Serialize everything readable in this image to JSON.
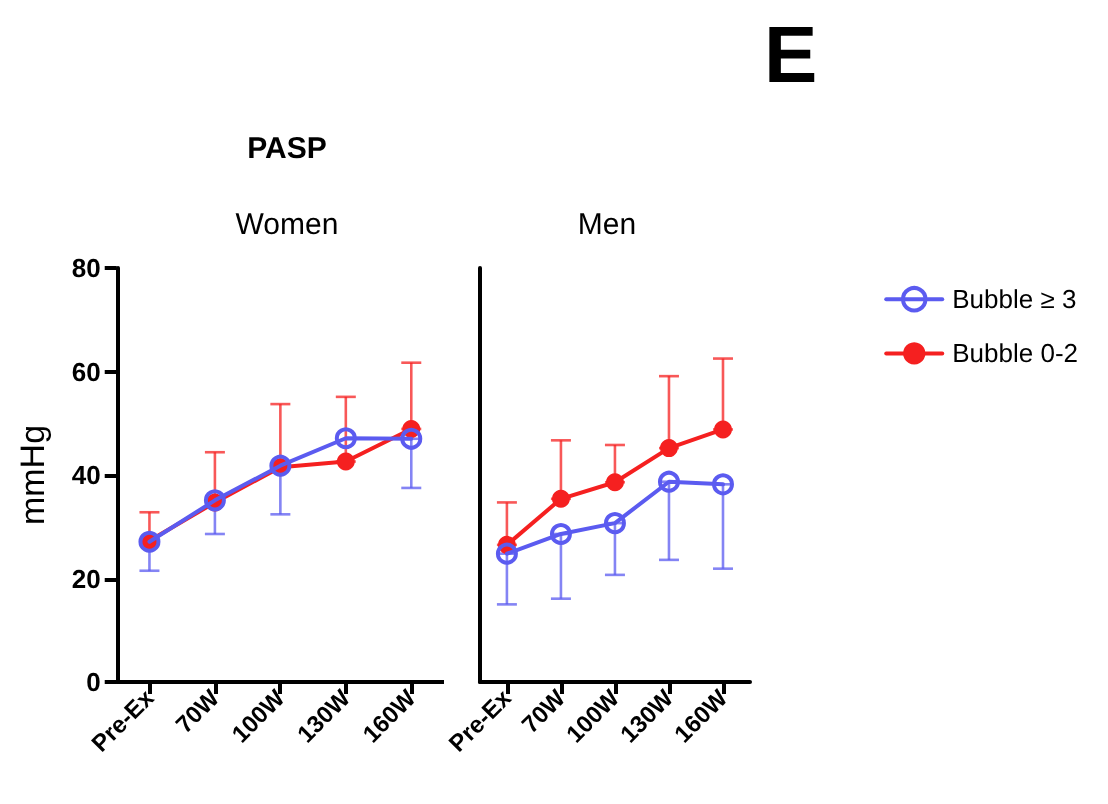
{
  "chart_data": [
    {
      "type": "line",
      "title": "PASP",
      "subtitle": "Women",
      "ylabel": "mmHg",
      "categories": [
        "Pre-Ex",
        "70W",
        "100W",
        "130W",
        "160W"
      ],
      "ylim": [
        0,
        80
      ],
      "yticks": [
        0,
        20,
        40,
        60,
        80
      ],
      "grid": false,
      "legend": false,
      "marker": "circle",
      "line_style": "solid",
      "series": [
        {
          "color": "#5b5bf0",
          "values": [
            27.1,
            35.1,
            41.8,
            47.1,
            47.0
          ],
          "errors": [
            [
              21.5,
              27.1
            ],
            [
              28.6,
              35.1
            ],
            [
              32.4,
              41.8
            ],
            null,
            [
              37.5,
              47.0
            ]
          ]
        },
        {
          "color": "#f52020",
          "values": [
            27.3,
            34.7,
            41.5,
            42.6,
            48.9
          ],
          "errors": [
            [
              27.3,
              32.8
            ],
            [
              34.7,
              44.4
            ],
            [
              41.5,
              53.7
            ],
            [
              42.6,
              55.1
            ],
            [
              48.9,
              61.7
            ]
          ]
        }
      ]
    },
    {
      "type": "line",
      "subtitle": "Men",
      "annotations": [
        "E"
      ],
      "categories": [
        "Pre-Ex",
        "70W",
        "100W",
        "130W",
        "160W"
      ],
      "ylim": [
        0,
        80
      ],
      "yticks": [
        0,
        20,
        40,
        60,
        80
      ],
      "tick_labels": "x",
      "grid": false,
      "legend": "right",
      "marker": "circle",
      "line_style": "solid",
      "series": [
        {
          "name": "Bubble ≥ 3",
          "color": "#5b5bf0",
          "values": [
            24.8,
            28.6,
            30.7,
            38.7,
            38.2
          ],
          "errors": [
            [
              15.0,
              24.8
            ],
            [
              16.1,
              28.6
            ],
            [
              20.7,
              30.7
            ],
            [
              23.6,
              38.7
            ],
            [
              21.9,
              38.2
            ]
          ]
        },
        {
          "name": "Bubble 0-2",
          "color": "#f52020",
          "values": [
            26.5,
            35.4,
            38.6,
            45.2,
            48.8
          ],
          "errors": [
            [
              26.5,
              34.7
            ],
            [
              35.4,
              46.7
            ],
            [
              38.6,
              45.8
            ],
            [
              45.2,
              59.1
            ],
            [
              48.8,
              62.5
            ]
          ]
        }
      ]
    }
  ]
}
